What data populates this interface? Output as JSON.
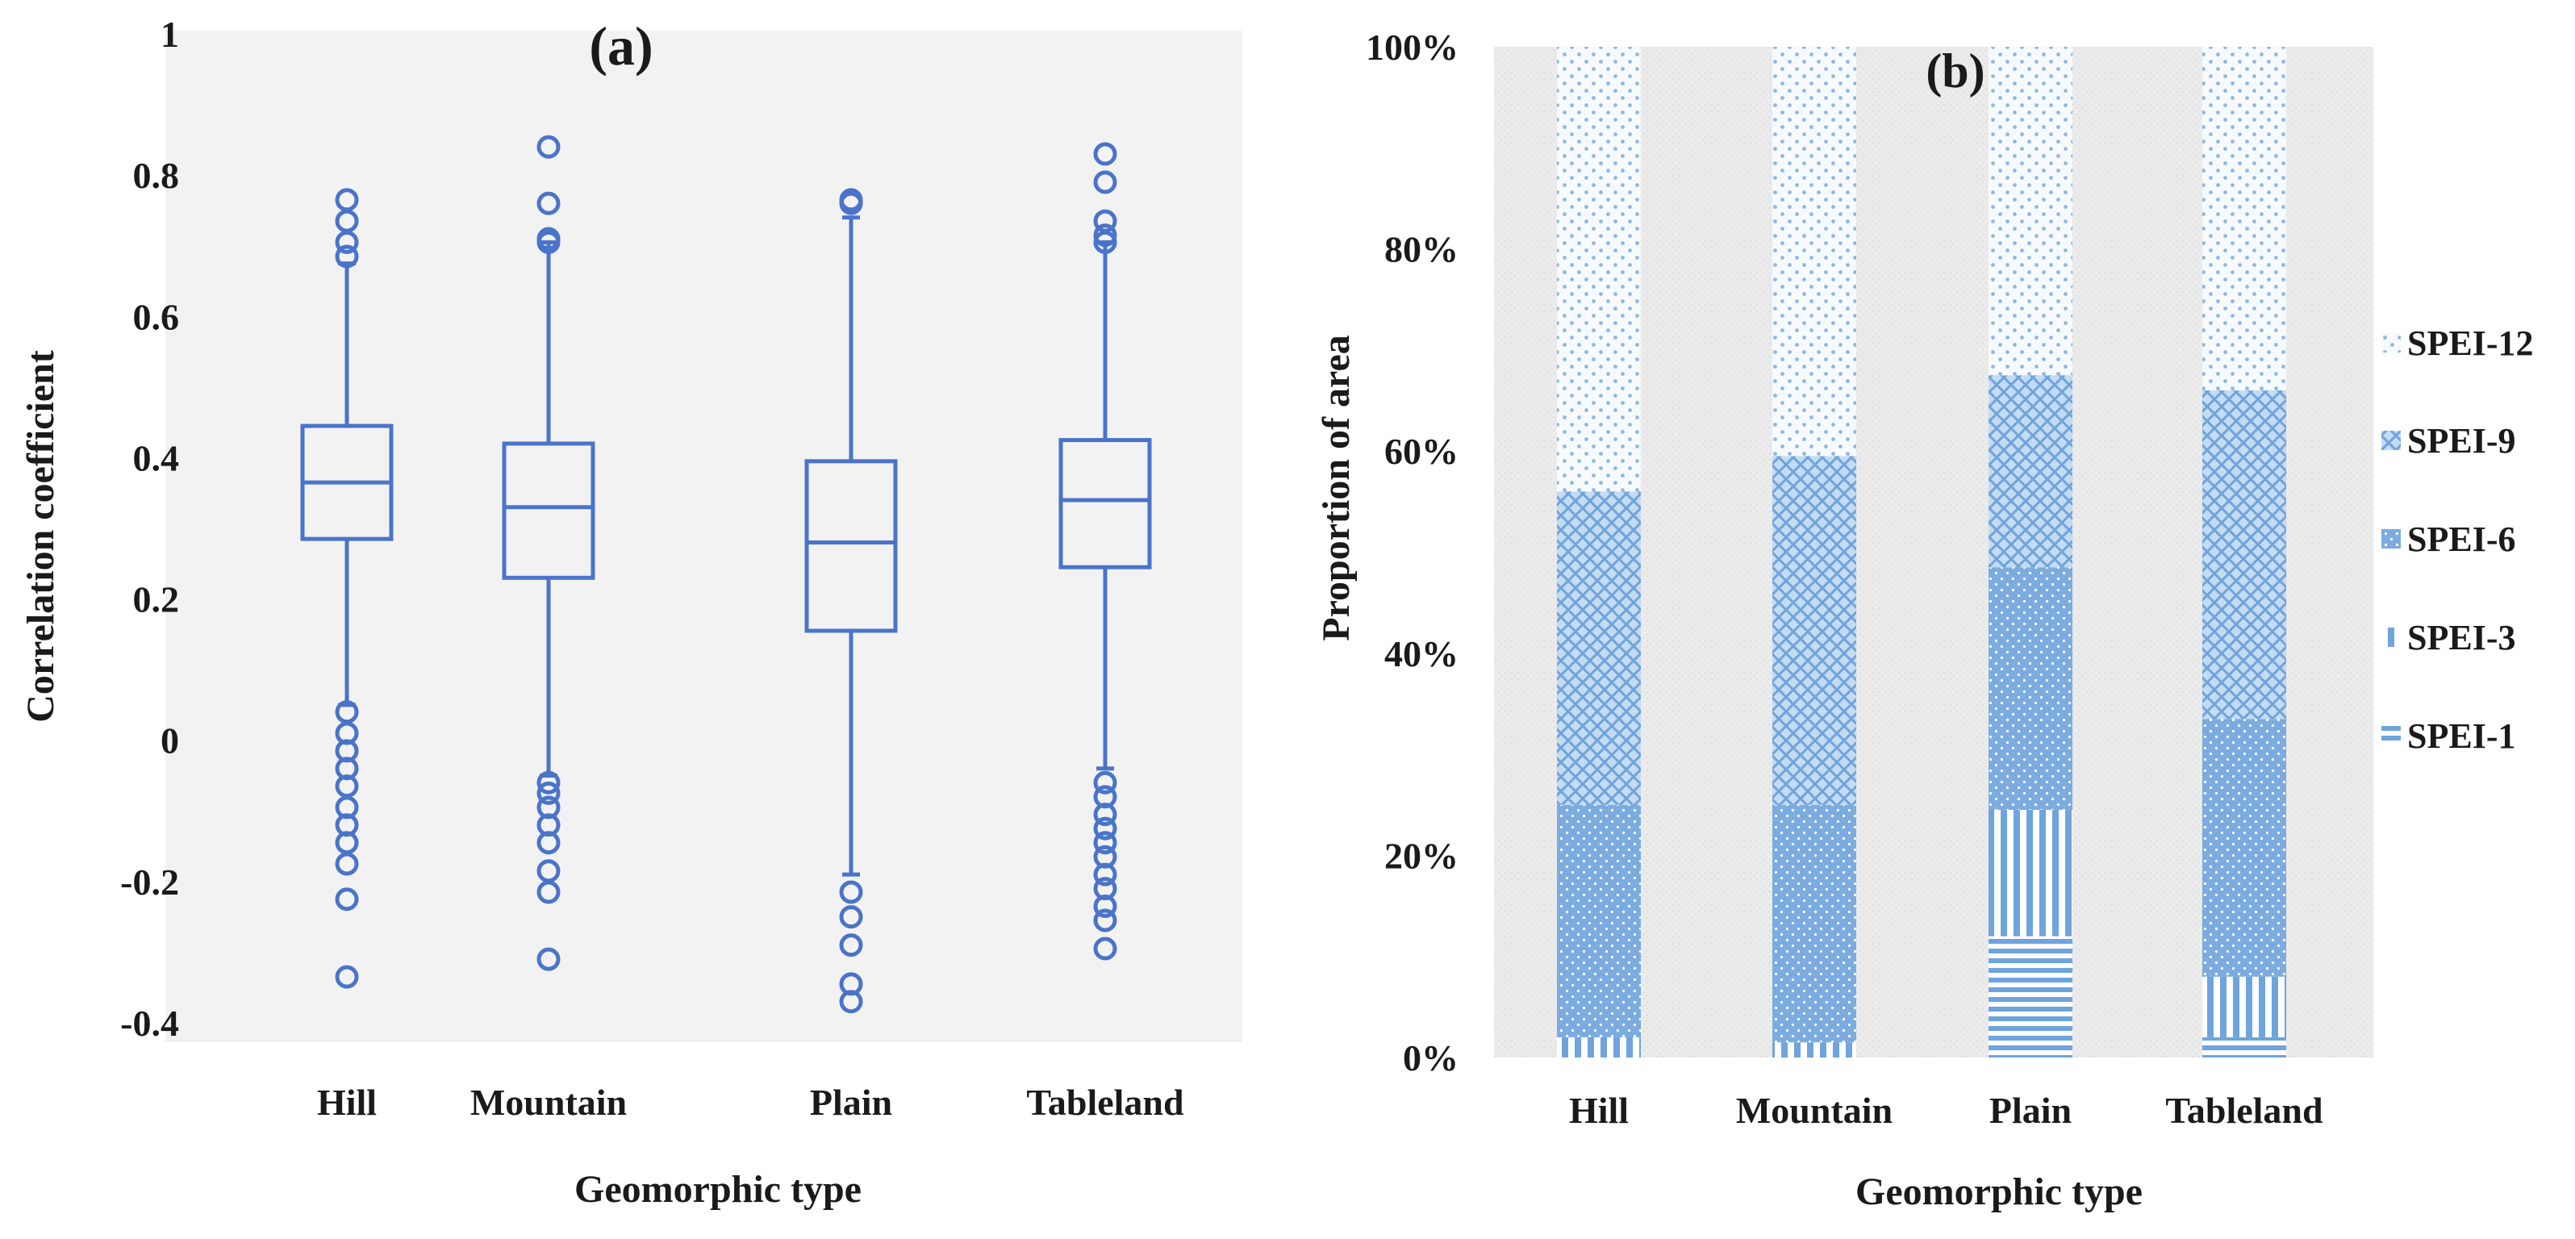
{
  "chart_data": [
    {
      "panel_label": "(a)",
      "type": "boxplot",
      "xlabel": "Geomorphic type",
      "ylabel": "Correlation coefficient",
      "ylim": [
        -0.4,
        1
      ],
      "yticks": [
        "1",
        "0.8",
        "0.6",
        "0.4",
        "0.2",
        "0",
        "-0.2",
        "-0.4"
      ],
      "ytick_values": [
        1,
        0.8,
        0.6,
        0.4,
        0.2,
        0,
        -0.2,
        -0.4
      ],
      "categories": [
        "Hill",
        "Mountain",
        "Plain",
        "Tableland"
      ],
      "colors": {
        "box": "#4a74c9",
        "plot_bg": "#f2f2f2"
      },
      "boxes": [
        {
          "category": "Hill",
          "whisker_low": 0.05,
          "q1": 0.285,
          "median": 0.365,
          "q3": 0.445,
          "whisker_high": 0.675,
          "outliers": [
            0.765,
            0.735,
            0.705,
            0.685,
            0.04,
            0.01,
            -0.015,
            -0.04,
            -0.065,
            -0.095,
            -0.12,
            -0.145,
            -0.175,
            -0.225,
            -0.335
          ]
        },
        {
          "category": "Mountain",
          "whisker_low": -0.05,
          "q1": 0.23,
          "median": 0.33,
          "q3": 0.42,
          "whisker_high": 0.705,
          "outliers": [
            0.84,
            0.76,
            0.71,
            0.705,
            -0.06,
            -0.075,
            -0.095,
            -0.12,
            -0.145,
            -0.185,
            -0.215,
            -0.31
          ]
        },
        {
          "category": "Plain",
          "whisker_low": -0.19,
          "q1": 0.155,
          "median": 0.28,
          "q3": 0.395,
          "whisker_high": 0.74,
          "outliers": [
            0.765,
            0.76,
            -0.215,
            -0.25,
            -0.29,
            -0.345,
            -0.37
          ]
        },
        {
          "category": "Tableland",
          "whisker_low": -0.04,
          "q1": 0.245,
          "median": 0.34,
          "q3": 0.425,
          "whisker_high": 0.705,
          "outliers": [
            0.83,
            0.79,
            0.735,
            0.715,
            0.705,
            -0.06,
            -0.08,
            -0.105,
            -0.125,
            -0.145,
            -0.165,
            -0.19,
            -0.21,
            -0.235,
            -0.255,
            -0.295
          ]
        }
      ]
    },
    {
      "panel_label": "(b)",
      "type": "stacked_bar",
      "xlabel": "Geomorphic type",
      "ylabel": "Proportion of area",
      "ylim": [
        0,
        100
      ],
      "yticks": [
        "100%",
        "80%",
        "60%",
        "40%",
        "20%",
        "0%"
      ],
      "ytick_values": [
        100,
        80,
        60,
        40,
        20,
        0
      ],
      "categories": [
        "Hill",
        "Mountain",
        "Plain",
        "Tableland"
      ],
      "colors": {
        "fill": "#6fa4dc",
        "plot_bg": "#ebebeb"
      },
      "series": [
        {
          "name": "SPEI-1",
          "pattern": "hlines",
          "values": [
            0,
            0,
            12,
            2
          ]
        },
        {
          "name": "SPEI-3",
          "pattern": "vlines",
          "values": [
            2,
            1.5,
            12.5,
            6
          ]
        },
        {
          "name": "SPEI-6",
          "pattern": "dense-dots",
          "values": [
            23,
            23.5,
            24,
            25.5
          ]
        },
        {
          "name": "SPEI-9",
          "pattern": "crosshatch",
          "values": [
            31,
            34.5,
            19,
            32.5
          ]
        },
        {
          "name": "SPEI-12",
          "pattern": "sparse-dots",
          "values": [
            44,
            40.5,
            32.5,
            34
          ]
        }
      ],
      "legend_order": [
        "SPEI-12",
        "SPEI-9",
        "SPEI-6",
        "SPEI-3",
        "SPEI-1"
      ]
    }
  ]
}
